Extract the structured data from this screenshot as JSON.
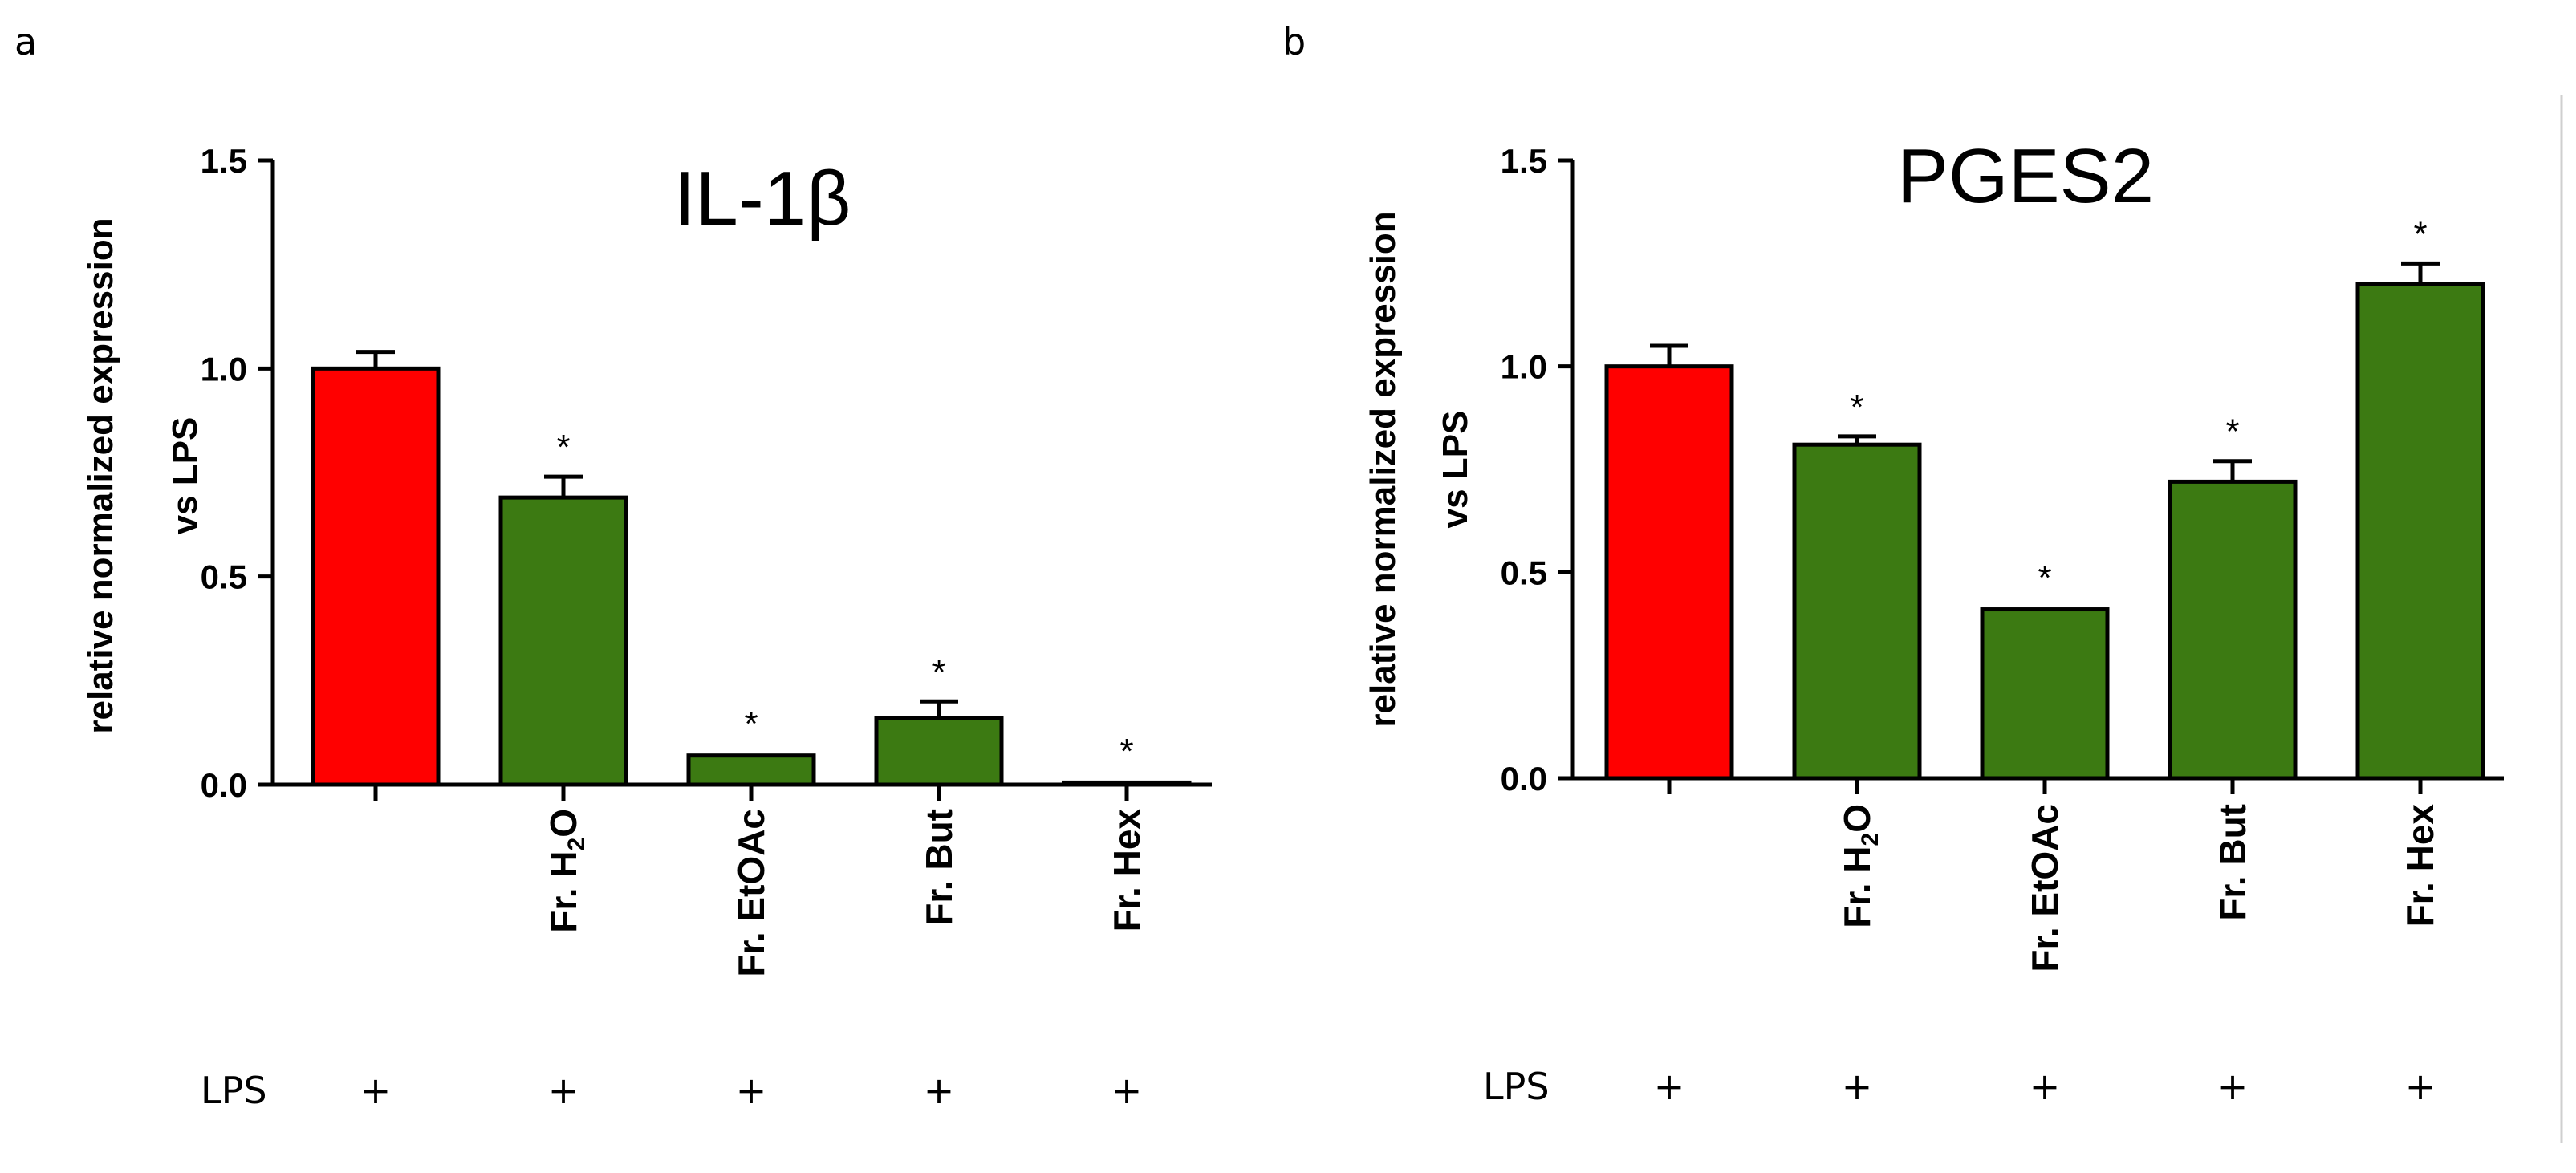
{
  "figure": {
    "panel_labels": [
      "a",
      "b"
    ],
    "lps_row_label": "LPS"
  },
  "chart_data": [
    {
      "type": "bar",
      "panel": "a",
      "title": "IL-1β",
      "ylabel_line1": "relative normalized expression",
      "ylabel_line2": "vs LPS",
      "ylim": [
        0,
        1.5
      ],
      "yticks": [
        "0.0",
        "0.5",
        "1.0",
        "1.5"
      ],
      "categories": [
        {
          "main": "",
          "sub": "",
          "tail": ""
        },
        {
          "main": "Fr. H",
          "sub": "2",
          "tail": "O"
        },
        {
          "main": "Fr. EtOAc",
          "sub": "",
          "tail": ""
        },
        {
          "main": "Fr. But",
          "sub": "",
          "tail": ""
        },
        {
          "main": "Fr. Hex",
          "sub": "",
          "tail": ""
        }
      ],
      "values": [
        1.0,
        0.69,
        0.07,
        0.16,
        0.005
      ],
      "errors": [
        0.04,
        0.05,
        0.005,
        0.04,
        0.005
      ],
      "significance": [
        "",
        "*",
        "*",
        "*",
        "*"
      ],
      "lps": [
        "+",
        "+",
        "+",
        "+",
        "+"
      ],
      "colors": [
        "#ff0000",
        "#3c7a12",
        "#3c7a12",
        "#3c7a12",
        "#3c7a12"
      ]
    },
    {
      "type": "bar",
      "panel": "b",
      "title": "PGES2",
      "ylabel_line1": "relative normalized expression",
      "ylabel_line2": "vs LPS",
      "ylim": [
        0,
        1.5
      ],
      "yticks": [
        "0.0",
        "0.5",
        "1.0",
        "1.5"
      ],
      "categories": [
        {
          "main": "",
          "sub": "",
          "tail": ""
        },
        {
          "main": "Fr. H",
          "sub": "2",
          "tail": "O"
        },
        {
          "main": "Fr. EtOAc",
          "sub": "",
          "tail": ""
        },
        {
          "main": "Fr. But",
          "sub": "",
          "tail": ""
        },
        {
          "main": "Fr. Hex",
          "sub": "",
          "tail": ""
        }
      ],
      "values": [
        1.0,
        0.81,
        0.41,
        0.72,
        1.2
      ],
      "errors": [
        0.05,
        0.02,
        0.005,
        0.05,
        0.05
      ],
      "significance": [
        "",
        "*",
        "*",
        "*",
        "*"
      ],
      "lps": [
        "+",
        "+",
        "+",
        "+",
        "+"
      ],
      "colors": [
        "#ff0000",
        "#3c7a12",
        "#3c7a12",
        "#3c7a12",
        "#3c7a12"
      ]
    }
  ]
}
